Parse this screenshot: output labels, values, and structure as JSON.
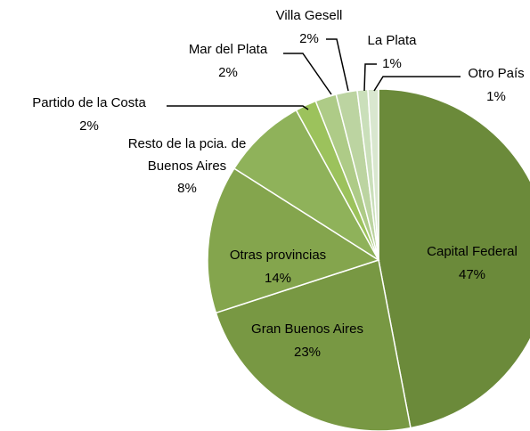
{
  "chart_data": {
    "type": "pie",
    "categories": [
      "Capital Federal",
      "Gran Buenos Aires",
      "Otras provincias",
      "Resto de la pcia. de Buenos Aires",
      "Partido de la Costa",
      "Mar del Plata",
      "Villa Gesell",
      "La Plata",
      "Otro País"
    ],
    "values": [
      47,
      23,
      14,
      8,
      2,
      2,
      2,
      1,
      1
    ],
    "value_labels": [
      "47%",
      "23%",
      "14%",
      "8%",
      "2%",
      "2%",
      "2%",
      "1%",
      "1%"
    ],
    "colors": [
      "#6b8a3a",
      "#789843",
      "#84a54d",
      "#8fb25a",
      "#9cc25c",
      "#aecb87",
      "#bcd4a1",
      "#cadfba",
      "#d9e7cf"
    ]
  }
}
